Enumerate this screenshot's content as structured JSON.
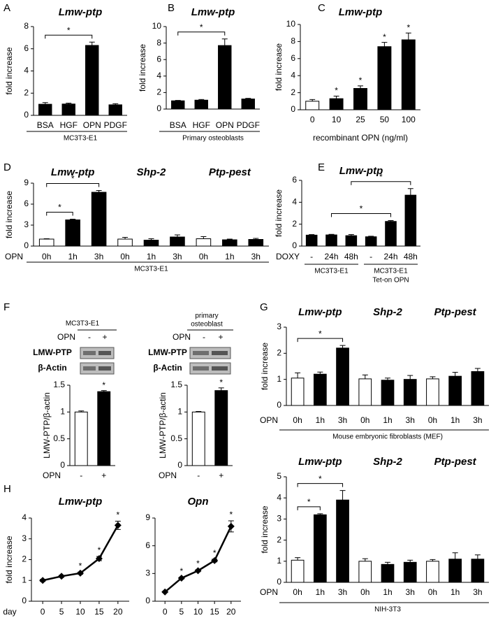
{
  "chart_data": [
    {
      "type": "bar",
      "panel": "A",
      "title": "Lmw-ptp",
      "ylabel": "fold increase",
      "xlabel": "MC3T3-E1",
      "xlabel_rule": true,
      "categories": [
        "BSA",
        "HGF",
        "OPN",
        "PDGF"
      ],
      "values": [
        1.0,
        1.02,
        6.3,
        0.95
      ],
      "errors": [
        0.15,
        0.08,
        0.3,
        0.1
      ],
      "colors": [
        "#000000",
        "#000000",
        "#000000",
        "#000000"
      ],
      "ylim": [
        0,
        8
      ],
      "yticks": [
        0,
        2,
        4,
        6,
        8
      ],
      "brackets": [
        {
          "from": 0,
          "to": 2,
          "label": "*"
        }
      ]
    },
    {
      "type": "bar",
      "panel": "B",
      "title": "Lmw-ptp",
      "ylabel": "fold increase",
      "xlabel": "Primary osteoblasts",
      "xlabel_rule": true,
      "categories": [
        "BSA",
        "HGF",
        "OPN",
        "PDGF"
      ],
      "values": [
        1.0,
        1.08,
        7.7,
        1.22
      ],
      "errors": [
        0.05,
        0.08,
        0.8,
        0.08
      ],
      "colors": [
        "#000000",
        "#000000",
        "#000000",
        "#000000"
      ],
      "ylim": [
        0,
        10
      ],
      "yticks": [
        0,
        2,
        4,
        6,
        8,
        10
      ],
      "brackets": [
        {
          "from": 0,
          "to": 2,
          "label": "*"
        }
      ]
    },
    {
      "type": "bar",
      "panel": "C",
      "title": "Lmw-ptp",
      "ylabel": "fold increase",
      "xlabel": "recombinant OPN (ng/ml)",
      "xlabel_rule": false,
      "categories": [
        "0",
        "10",
        "25",
        "50",
        "100"
      ],
      "values": [
        1.0,
        1.3,
        2.5,
        7.4,
        8.2
      ],
      "errors": [
        0.2,
        0.3,
        0.3,
        0.5,
        0.8
      ],
      "colors": [
        "#ffffff",
        "#000000",
        "#000000",
        "#000000",
        "#000000"
      ],
      "ylim": [
        0,
        10
      ],
      "yticks": [
        0,
        2,
        4,
        6,
        8,
        10
      ],
      "annotations": [
        {
          "index": 1,
          "label": "*"
        },
        {
          "index": 2,
          "label": "*"
        },
        {
          "index": 3,
          "label": "*"
        },
        {
          "index": 4,
          "label": "*"
        }
      ]
    },
    {
      "type": "bar",
      "panel": "D",
      "group_titles": [
        "Lmw-ptp",
        "Shp-2",
        "Ptp-pest"
      ],
      "ylabel": "fold increase",
      "row_label": "OPN",
      "xlabel": "MC3T3-E1",
      "xlabel_rule": true,
      "categories": [
        "0h",
        "1h",
        "3h",
        "0h",
        "1h",
        "3h",
        "0h",
        "1h",
        "3h"
      ],
      "values": [
        1.0,
        3.75,
        7.7,
        1.0,
        0.85,
        1.3,
        1.05,
        0.9,
        0.95
      ],
      "errors": [
        0.05,
        0.1,
        0.25,
        0.25,
        0.2,
        0.3,
        0.3,
        0.1,
        0.15
      ],
      "colors": [
        "#ffffff",
        "#000000",
        "#000000",
        "#ffffff",
        "#000000",
        "#000000",
        "#ffffff",
        "#000000",
        "#000000"
      ],
      "ylim": [
        0,
        9
      ],
      "yticks": [
        0,
        3,
        6,
        9
      ],
      "brackets": [
        {
          "from": 0,
          "to": 1,
          "label": "*"
        },
        {
          "from": 0,
          "to": 2,
          "label": "*"
        }
      ]
    },
    {
      "type": "bar",
      "panel": "E",
      "title": "Lmw-ptp",
      "ylabel": "fold increase",
      "row_label": "DOXY",
      "categories": [
        "-",
        "24h",
        "48h",
        "-",
        "24h",
        "48h"
      ],
      "values": [
        1.0,
        1.02,
        0.95,
        0.85,
        2.25,
        4.65
      ],
      "errors": [
        0.05,
        0.05,
        0.1,
        0.05,
        0.08,
        0.6
      ],
      "colors": [
        "#000000",
        "#000000",
        "#000000",
        "#000000",
        "#000000",
        "#000000"
      ],
      "ylim": [
        0,
        6
      ],
      "yticks": [
        0,
        2,
        4,
        6
      ],
      "groups_below": [
        [
          "MC3T3-E1"
        ],
        [
          "MC3T3-E1",
          "Tet-on OPN"
        ]
      ],
      "brackets": [
        {
          "from": 1,
          "to": 4,
          "label": "*"
        },
        {
          "from": 2,
          "to": 5,
          "label": "*"
        }
      ]
    },
    {
      "type": "bar",
      "panel": "F",
      "ylabel": "LMW-PTP/β-actin",
      "row_label": "OPN",
      "categories": [
        "-",
        "+"
      ],
      "values": [
        1.0,
        1.38
      ],
      "errors": [
        0.02,
        0.02
      ],
      "colors": [
        "#ffffff",
        "#000000"
      ],
      "ylim": [
        0,
        1.5
      ],
      "yticks": [
        0,
        0.5,
        1,
        1.5
      ],
      "annotations": [
        {
          "index": 1,
          "label": "*"
        }
      ]
    },
    {
      "type": "bar",
      "ylabel": "LMW-PTP/β-actin",
      "row_label": "OPN",
      "categories": [
        "-",
        "+"
      ],
      "values": [
        1.0,
        1.4
      ],
      "errors": [
        0.01,
        0.05
      ],
      "colors": [
        "#ffffff",
        "#000000"
      ],
      "ylim": [
        0,
        1.5
      ],
      "yticks": [
        0,
        0.5,
        1,
        1.5
      ],
      "annotations": [
        {
          "index": 1,
          "label": "*"
        }
      ]
    },
    {
      "type": "bar",
      "panel": "G",
      "group_titles": [
        "Lmw-ptp",
        "Shp-2",
        "Ptp-pest"
      ],
      "ylabel": "fold increase",
      "row_label": "OPN",
      "xlabel": "Mouse embryonic fibroblasts (MEF)",
      "xlabel_rule": true,
      "categories": [
        "0h",
        "1h",
        "3h",
        "0h",
        "1h",
        "3h",
        "0h",
        "1h",
        "3h"
      ],
      "values": [
        1.05,
        1.2,
        2.2,
        1.02,
        0.97,
        1.0,
        1.02,
        1.12,
        1.3
      ],
      "errors": [
        0.2,
        0.08,
        0.1,
        0.15,
        0.08,
        0.15,
        0.08,
        0.15,
        0.12
      ],
      "colors": [
        "#ffffff",
        "#000000",
        "#000000",
        "#ffffff",
        "#000000",
        "#000000",
        "#ffffff",
        "#000000",
        "#000000"
      ],
      "ylim": [
        0,
        3
      ],
      "yticks": [
        0,
        1,
        2,
        3
      ],
      "brackets": [
        {
          "from": 0,
          "to": 2,
          "label": "*"
        }
      ]
    },
    {
      "type": "bar",
      "group_titles": [
        "Lmw-ptp",
        "Shp-2",
        "Ptp-pest"
      ],
      "ylabel": "fold increase",
      "row_label": "OPN",
      "xlabel": "NIH-3T3",
      "xlabel_rule": true,
      "categories": [
        "0h",
        "1h",
        "3h",
        "0h",
        "1h",
        "3h",
        "0h",
        "1h",
        "3h"
      ],
      "values": [
        1.05,
        3.2,
        3.9,
        1.0,
        0.85,
        0.95,
        1.0,
        1.1,
        1.1
      ],
      "errors": [
        0.12,
        0.05,
        0.45,
        0.12,
        0.1,
        0.1,
        0.08,
        0.3,
        0.2
      ],
      "colors": [
        "#ffffff",
        "#000000",
        "#000000",
        "#ffffff",
        "#000000",
        "#000000",
        "#ffffff",
        "#000000",
        "#000000"
      ],
      "ylim": [
        0,
        5
      ],
      "yticks": [
        0,
        1,
        2,
        3,
        4,
        5
      ],
      "brackets": [
        {
          "from": 0,
          "to": 1,
          "label": "*"
        },
        {
          "from": 0,
          "to": 2,
          "label": "*"
        }
      ]
    },
    {
      "type": "line",
      "panel": "H",
      "title": "Lmw-ptp",
      "ylabel": "fold increase",
      "row_label": "day",
      "color": "#000000",
      "x": [
        0,
        5,
        10,
        15,
        20
      ],
      "values": [
        1.0,
        1.2,
        1.35,
        2.05,
        3.65
      ],
      "errors": [
        0.05,
        0.05,
        0.05,
        0.1,
        0.2
      ],
      "xlim": [
        -3,
        23
      ],
      "xticks": [
        0,
        5,
        10,
        15,
        20
      ],
      "ylim": [
        0,
        4
      ],
      "yticks": [
        0,
        1,
        2,
        3,
        4
      ],
      "annotations": [
        {
          "index": 2,
          "label": "*"
        },
        {
          "index": 3,
          "label": "*"
        },
        {
          "index": 4,
          "label": "*"
        }
      ]
    },
    {
      "type": "line",
      "title": "Opn",
      "color": "#000000",
      "x": [
        0,
        5,
        10,
        15,
        20
      ],
      "values": [
        1.0,
        2.5,
        3.3,
        4.4,
        8.1
      ],
      "errors": [
        0.05,
        0.1,
        0.1,
        0.15,
        0.6
      ],
      "xlim": [
        -3,
        23
      ],
      "xticks": [
        0,
        5,
        10,
        15,
        20
      ],
      "ylim": [
        0,
        9
      ],
      "yticks": [
        0,
        3,
        6,
        9
      ],
      "annotations": [
        {
          "index": 1,
          "label": "*"
        },
        {
          "index": 2,
          "label": "*"
        },
        {
          "index": 3,
          "label": "*"
        },
        {
          "index": 4,
          "label": "*"
        }
      ]
    }
  ],
  "blots": [
    {
      "header": [
        "MC3T3-E1"
      ],
      "lanes_label": "OPN",
      "lanes": [
        "-",
        "+"
      ],
      "rows": [
        "LMW-PTP",
        "β-Actin"
      ]
    },
    {
      "header": [
        "primary",
        "osteoblast"
      ],
      "lanes_label": "OPN",
      "lanes": [
        "-",
        "+"
      ],
      "rows": [
        "LMW-PTP",
        "β-Actin"
      ]
    }
  ]
}
